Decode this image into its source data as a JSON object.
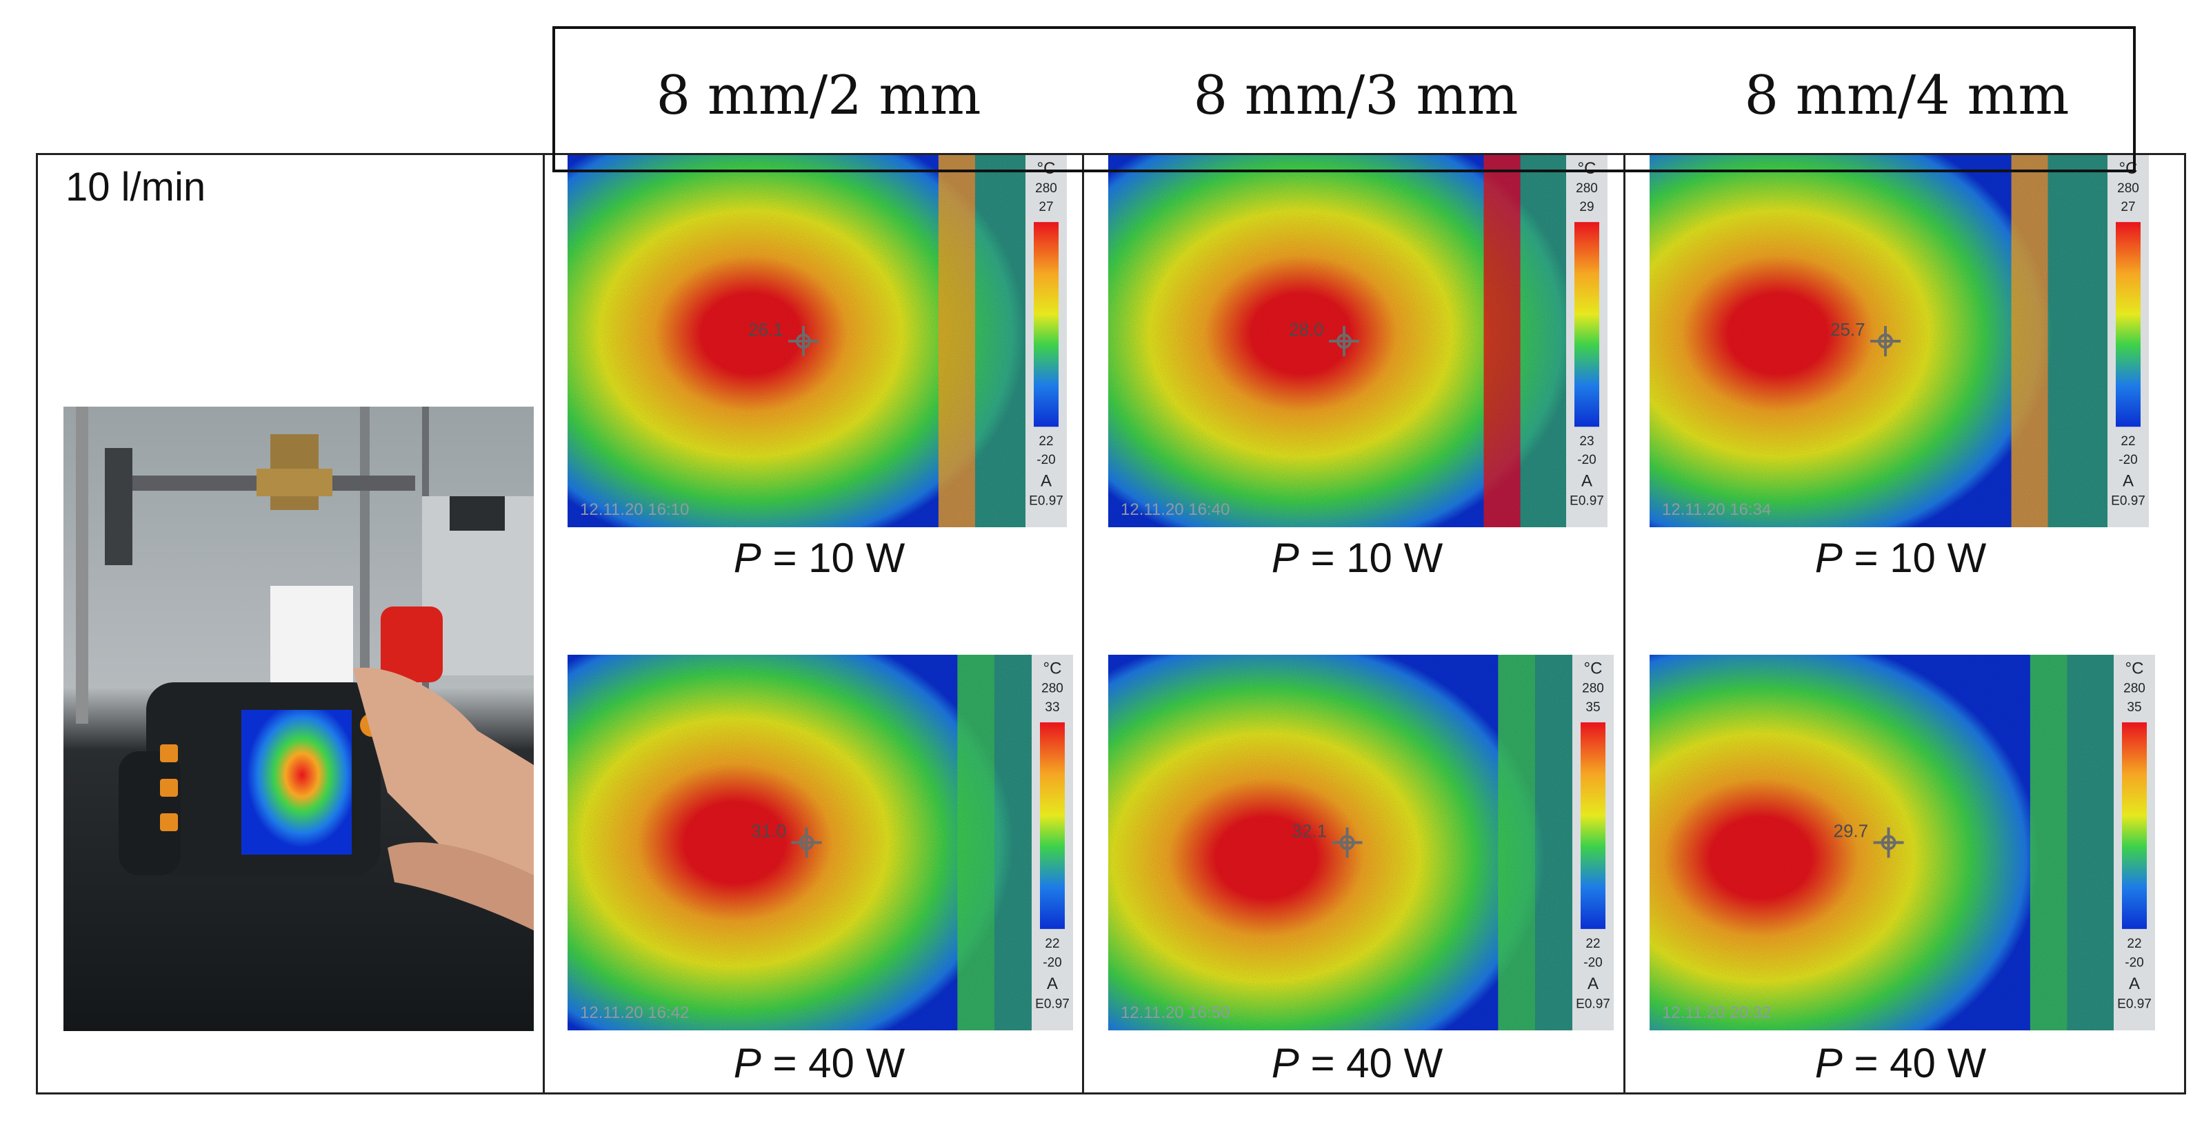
{
  "columns": [
    {
      "label": "8 mm/2 mm"
    },
    {
      "label": "8 mm/3 mm"
    },
    {
      "label": "8 mm/4 mm"
    }
  ],
  "flow_label": "10 l/min",
  "power_symbol": "P",
  "rows": [
    {
      "power": " = 10 W"
    },
    {
      "power": " = 40 W"
    }
  ],
  "thermal_images": [
    {
      "id": "c1r1",
      "spot": "26.1",
      "scale_top": "280",
      "scale_max": "27",
      "scale_min": "22",
      "scale_low": "-20",
      "mode": "A",
      "emissivity": "E0.97",
      "unit": "°C",
      "timestamp": "12.11.20 16:10"
    },
    {
      "id": "c2r1",
      "spot": "28.0",
      "scale_top": "280",
      "scale_max": "29",
      "scale_min": "23",
      "scale_low": "-20",
      "mode": "A",
      "emissivity": "E0.97",
      "unit": "°C",
      "timestamp": "12.11.20 16:40"
    },
    {
      "id": "c3r1",
      "spot": "25.7",
      "scale_top": "280",
      "scale_max": "27",
      "scale_min": "22",
      "scale_low": "-20",
      "mode": "A",
      "emissivity": "E0.97",
      "unit": "°C",
      "timestamp": "12.11.20 16:34"
    },
    {
      "id": "c1r2",
      "spot": "31.0",
      "scale_top": "280",
      "scale_max": "33",
      "scale_min": "22",
      "scale_low": "-20",
      "mode": "A",
      "emissivity": "E0.97",
      "unit": "°C",
      "timestamp": "12.11.20 16:42"
    },
    {
      "id": "c2r2",
      "spot": "32.1",
      "scale_top": "280",
      "scale_max": "35",
      "scale_min": "22",
      "scale_low": "-20",
      "mode": "A",
      "emissivity": "E0.97",
      "unit": "°C",
      "timestamp": "12.11.20 16:50"
    },
    {
      "id": "c3r2",
      "spot": "29.7",
      "scale_top": "280",
      "scale_max": "35",
      "scale_min": "22",
      "scale_low": "-20",
      "mode": "A",
      "emissivity": "E0.97",
      "unit": "°C",
      "timestamp": "12.11.20 20:32"
    }
  ],
  "colors": {
    "hot": "#e8141c",
    "warm": "#f5a623",
    "mid": "#e6e81e",
    "cool": "#3fd14a",
    "cold": "#1e7be8",
    "coldest": "#0a2fd1"
  }
}
